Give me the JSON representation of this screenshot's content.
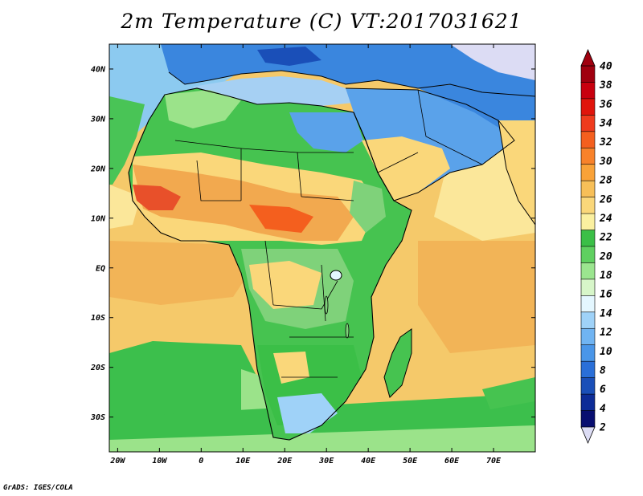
{
  "title": "2m Temperature (C) VT:2017031621",
  "credit": "GrADS: IGES/COLA",
  "colors": {
    "ocean_main": "#f5c96a",
    "ocean_warm": "#f2b457",
    "ocean_cool": "#fbe79a",
    "ocean_south_green": "#3cbf4c",
    "ocean_south_light": "#9be38a",
    "mediterranean": "#a6d0f3",
    "north_cold": "#3a86de",
    "sahara_green": "#46c350",
    "sahel_orange": "#f2a94f",
    "hot_red": "#e8502a",
    "east_africa_green": "#7fd27a",
    "arabia_blue": "#5aa2ea",
    "coastline": "#000000"
  },
  "chart_data": {
    "type": "heatmap",
    "title": "2m Temperature (C) VT:2017031621",
    "x_axis": {
      "range": [
        -22,
        80
      ],
      "ticks": [
        -20,
        -10,
        0,
        10,
        20,
        30,
        40,
        50,
        60,
        70
      ],
      "tick_labels": [
        "20W",
        "10W",
        "0",
        "10E",
        "20E",
        "30E",
        "40E",
        "50E",
        "60E",
        "70E"
      ]
    },
    "y_axis": {
      "range": [
        -37,
        45
      ],
      "ticks": [
        40,
        30,
        20,
        10,
        0,
        -10,
        -20,
        -30
      ],
      "tick_labels": [
        "40N",
        "30N",
        "20N",
        "10N",
        "EQ",
        "10S",
        "20S",
        "30S"
      ]
    },
    "colorbar": {
      "levels": [
        2,
        4,
        6,
        8,
        10,
        12,
        14,
        16,
        18,
        20,
        22,
        24,
        26,
        28,
        30,
        32,
        34,
        36,
        38,
        40
      ],
      "labels": [
        "2",
        "4",
        "6",
        "8",
        "10",
        "12",
        "14",
        "16",
        "18",
        "20",
        "22",
        "24",
        "26",
        "28",
        "30",
        "32",
        "34",
        "36",
        "38",
        "40"
      ],
      "colors": [
        "#a0000f",
        "#c8000e",
        "#e0140b",
        "#ef3b1d",
        "#f45f1e",
        "#f8822a",
        "#f9a238",
        "#f7bf58",
        "#fad77a",
        "#fbf0a0",
        "#3bbf47",
        "#5fd060",
        "#9be58f",
        "#d7f6c9",
        "#e4f7ff",
        "#9fd2f8",
        "#70b4f2",
        "#4a96e8",
        "#2a6fd8",
        "#1a4fb8",
        "#0d2c97",
        "#080e70"
      ],
      "min_arrow_color": "#dcdcf4",
      "max_arrow_color": "#a0000f"
    }
  }
}
